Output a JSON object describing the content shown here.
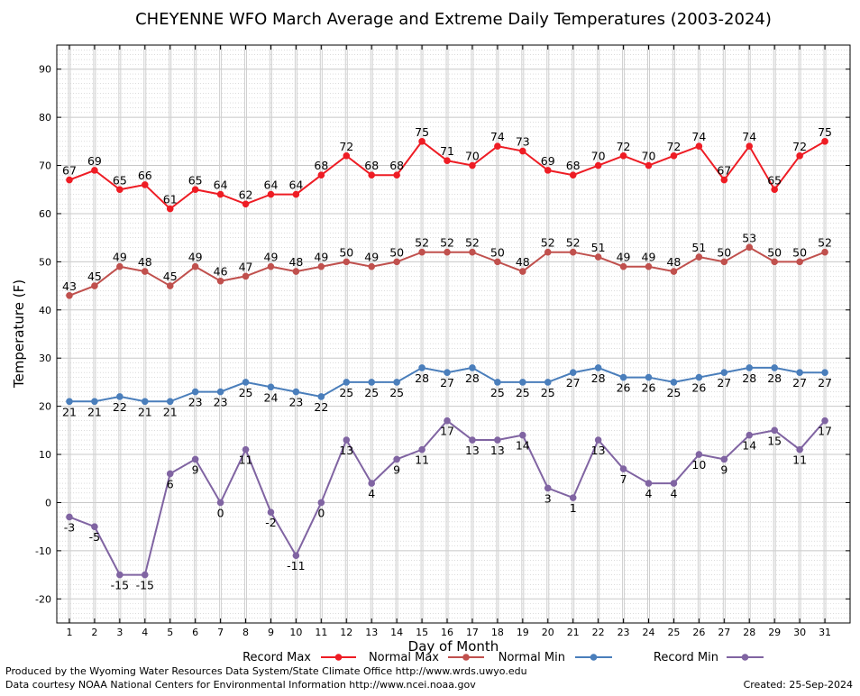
{
  "chart_data": {
    "type": "line",
    "title": "CHEYENNE WFO March Average and Extreme Daily Temperatures (2003-2024)",
    "xlabel": "Day of Month",
    "ylabel": "Temperature (F)",
    "ylim": [
      -25,
      95
    ],
    "yticks": [
      -20,
      -10,
      0,
      10,
      20,
      30,
      40,
      50,
      60,
      70,
      80,
      90
    ],
    "x": [
      1,
      2,
      3,
      4,
      5,
      6,
      7,
      8,
      9,
      10,
      11,
      12,
      13,
      14,
      15,
      16,
      17,
      18,
      19,
      20,
      21,
      22,
      23,
      24,
      25,
      26,
      27,
      28,
      29,
      30,
      31
    ],
    "grid": true,
    "legend_position": "bottom",
    "series": [
      {
        "name": "Record Max",
        "color": "#ee1c24",
        "label_position": "above",
        "values": [
          67,
          69,
          65,
          66,
          61,
          65,
          64,
          62,
          64,
          64,
          68,
          72,
          68,
          68,
          75,
          71,
          70,
          74,
          73,
          69,
          68,
          70,
          72,
          70,
          72,
          74,
          67,
          74,
          65,
          72,
          75
        ]
      },
      {
        "name": "Normal Max",
        "color": "#c0504d",
        "label_position": "above",
        "values": [
          43,
          45,
          49,
          48,
          45,
          49,
          46,
          47,
          49,
          48,
          49,
          50,
          49,
          50,
          52,
          52,
          52,
          50,
          48,
          52,
          52,
          51,
          49,
          49,
          48,
          51,
          50,
          53,
          50,
          50,
          52
        ]
      },
      {
        "name": "Normal Min",
        "color": "#4a7ebb",
        "label_position": "below",
        "values": [
          21,
          21,
          22,
          21,
          21,
          23,
          23,
          25,
          24,
          23,
          22,
          25,
          25,
          25,
          28,
          27,
          28,
          25,
          25,
          25,
          27,
          28,
          26,
          26,
          25,
          26,
          27,
          28,
          28,
          27,
          27
        ]
      },
      {
        "name": "Record Min",
        "color": "#8064a2",
        "label_position": "below",
        "values": [
          -3,
          -5,
          -15,
          -15,
          6,
          9,
          0,
          11,
          -2,
          -11,
          0,
          13,
          4,
          9,
          11,
          17,
          13,
          13,
          14,
          3,
          1,
          13,
          7,
          4,
          4,
          10,
          9,
          14,
          15,
          11,
          17
        ]
      }
    ]
  },
  "footer": {
    "produced_by": "Produced by the Wyoming Water Resources Data System/State Climate Office http://www.wrds.uwyo.edu",
    "data_courtesy": "Data courtesy NOAA National Centers for Environmental Information http://www.ncei.noaa.gov",
    "created": "Created: 25-Sep-2024"
  }
}
